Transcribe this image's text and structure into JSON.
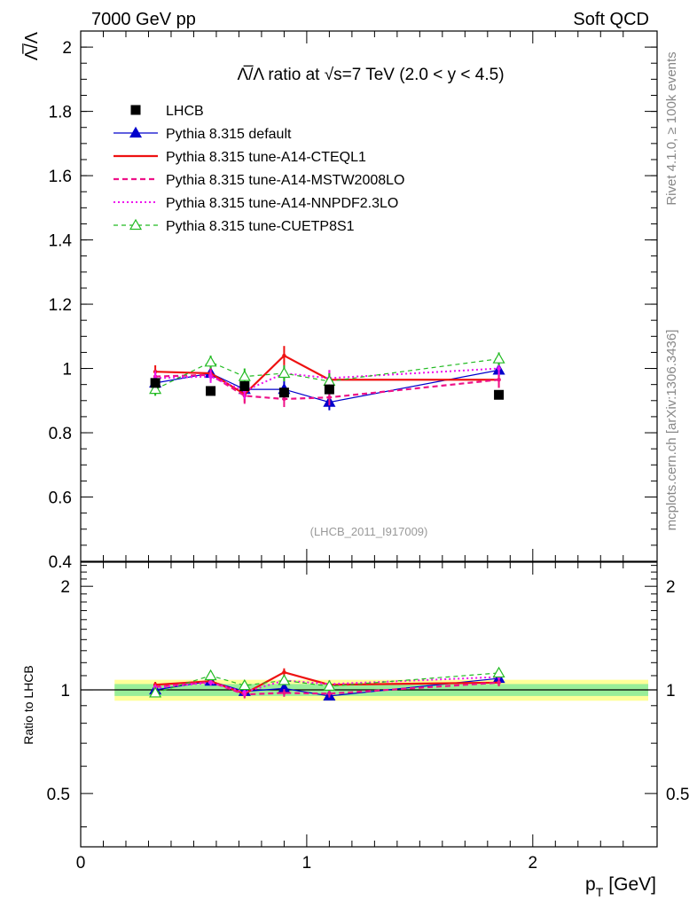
{
  "header": {
    "left": "7000 GeV pp",
    "right": "Soft QCD"
  },
  "side_labels": {
    "rivet": "Rivet 4.1.0, ≥ 100k events",
    "mcplots": "mcplots.cern.ch [arXiv:1306.3436]"
  },
  "colors": {
    "data": "#000000",
    "default": "#0000cc",
    "cteql1": "#ee1111",
    "mstw": "#ee1188",
    "nnpdf": "#ee11ee",
    "cuetp": "#22bb22",
    "band_inner": "#99ee99",
    "band_outer": "#ffff99"
  },
  "chart_data": [
    {
      "type": "line",
      "panel": "main",
      "title": "Λ̅/Λ ratio at √s=7 TeV (2.0 < y < 4.5)",
      "ylabel": "Λ̅/Λ",
      "xlabel": "",
      "xlim": [
        0,
        2.55
      ],
      "ylim": [
        0.4,
        2.05
      ],
      "yticks": [
        0.4,
        0.6,
        0.8,
        1,
        1.2,
        1.4,
        1.6,
        1.8,
        2
      ],
      "ytick_labels": [
        "0.4",
        "0.6",
        "0.8",
        "1",
        "1.2",
        "1.4",
        "1.6",
        "1.8",
        "2"
      ],
      "watermark": "(LHCB_2011_I917009)",
      "legend_position": "top-left",
      "data": {
        "name": "LHCB",
        "x": [
          0.33,
          0.575,
          0.725,
          0.9,
          1.1,
          1.85
        ],
        "y": [
          0.955,
          0.93,
          0.945,
          0.925,
          0.935,
          0.918
        ],
        "err": [
          0.012,
          0.01,
          0.012,
          0.012,
          0.015,
          0.01
        ]
      },
      "series": [
        {
          "name": "Pythia 8.315 default",
          "key": "default",
          "x": [
            0.33,
            0.575,
            0.725,
            0.9,
            1.1,
            1.85
          ],
          "y": [
            0.955,
            0.985,
            0.935,
            0.935,
            0.895,
            0.995
          ],
          "err": [
            0.02,
            0.02,
            0.025,
            0.025,
            0.025,
            0.02
          ]
        },
        {
          "name": "Pythia 8.315 tune-A14-CTEQL1",
          "key": "cteql1",
          "x": [
            0.33,
            0.575,
            0.725,
            0.9,
            1.1,
            1.85
          ],
          "y": [
            0.99,
            0.985,
            0.92,
            1.04,
            0.965,
            0.965
          ],
          "err": [
            0.02,
            0.02,
            0.025,
            0.03,
            0.03,
            0.025
          ]
        },
        {
          "name": "Pythia 8.315 tune-A14-MSTW2008LO",
          "key": "mstw",
          "x": [
            0.33,
            0.575,
            0.725,
            0.9,
            1.1,
            1.85
          ],
          "y": [
            0.975,
            0.98,
            0.915,
            0.905,
            0.91,
            0.965
          ],
          "err": [
            0.02,
            0.02,
            0.025,
            0.025,
            0.025,
            0.025
          ]
        },
        {
          "name": "Pythia 8.315 tune-A14-NNPDF2.3LO",
          "key": "nnpdf",
          "x": [
            0.33,
            0.575,
            0.725,
            0.9,
            1.1,
            1.85
          ],
          "y": [
            0.97,
            0.975,
            0.93,
            0.985,
            0.97,
            1.0
          ],
          "err": [
            0.02,
            0.02,
            0.025,
            0.025,
            0.025,
            0.02
          ]
        },
        {
          "name": "Pythia 8.315 tune-CUETP8S1",
          "key": "cuetp",
          "x": [
            0.33,
            0.575,
            0.725,
            0.9,
            1.1,
            1.85
          ],
          "y": [
            0.935,
            1.02,
            0.975,
            0.985,
            0.96,
            1.03
          ],
          "err": [
            0.02,
            0.02,
            0.025,
            0.025,
            0.025,
            0.02
          ]
        }
      ]
    },
    {
      "type": "line",
      "panel": "ratio",
      "ylabel": "Ratio to LHCB",
      "xlabel": "p_T [GeV]",
      "xlabel_main": "p",
      "xlabel_sub": "T",
      "xlabel_unit": "[GeV]",
      "xlim": [
        0,
        2.55
      ],
      "ylim": [
        0.35,
        2.35
      ],
      "scale": "log",
      "xticks": [
        0,
        1,
        2
      ],
      "xtick_labels": [
        "0",
        "1",
        "2"
      ],
      "yticks": [
        0.5,
        1,
        2
      ],
      "ytick_labels": [
        "0.5",
        "1",
        "2"
      ],
      "band_xrange": [
        0.15,
        2.55
      ],
      "band_inner": [
        0.96,
        1.04
      ],
      "band_outer": [
        0.93,
        1.07
      ],
      "series": [
        {
          "key": "default",
          "x": [
            0.33,
            0.575,
            0.725,
            0.9,
            1.1,
            1.85
          ],
          "y": [
            1.0,
            1.06,
            0.99,
            1.01,
            0.96,
            1.08
          ],
          "err": [
            0.02,
            0.02,
            0.025,
            0.025,
            0.025,
            0.02
          ]
        },
        {
          "key": "cteql1",
          "x": [
            0.33,
            0.575,
            0.725,
            0.9,
            1.1,
            1.85
          ],
          "y": [
            1.035,
            1.06,
            0.975,
            1.125,
            1.035,
            1.05
          ],
          "err": [
            0.02,
            0.02,
            0.025,
            0.03,
            0.03,
            0.025
          ]
        },
        {
          "key": "mstw",
          "x": [
            0.33,
            0.575,
            0.725,
            0.9,
            1.1,
            1.85
          ],
          "y": [
            1.02,
            1.055,
            0.97,
            0.98,
            0.975,
            1.05
          ],
          "err": [
            0.02,
            0.02,
            0.025,
            0.025,
            0.025,
            0.025
          ]
        },
        {
          "key": "nnpdf",
          "x": [
            0.33,
            0.575,
            0.725,
            0.9,
            1.1,
            1.85
          ],
          "y": [
            1.015,
            1.05,
            0.985,
            1.065,
            1.04,
            1.09
          ],
          "err": [
            0.02,
            0.02,
            0.025,
            0.025,
            0.025,
            0.02
          ]
        },
        {
          "key": "cuetp",
          "x": [
            0.33,
            0.575,
            0.725,
            0.9,
            1.1,
            1.85
          ],
          "y": [
            0.98,
            1.1,
            1.03,
            1.065,
            1.025,
            1.12
          ],
          "err": [
            0.02,
            0.02,
            0.025,
            0.025,
            0.025,
            0.02
          ]
        }
      ]
    }
  ]
}
